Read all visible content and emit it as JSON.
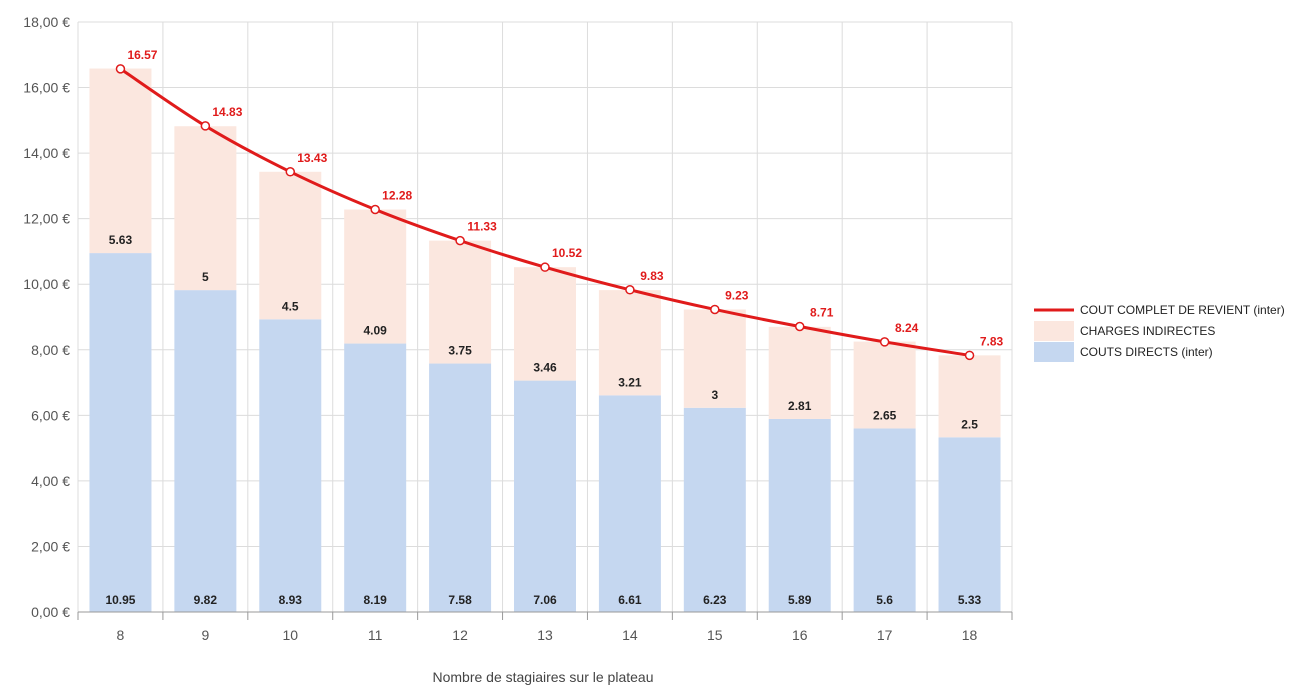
{
  "chart_data": {
    "type": "bar",
    "stacked": true,
    "categories": [
      "8",
      "9",
      "10",
      "11",
      "12",
      "13",
      "14",
      "15",
      "16",
      "17",
      "18"
    ],
    "xlabel": "Nombre de stagiaires sur le plateau",
    "ylabel": "",
    "ylim": [
      0,
      18
    ],
    "y_ticks": [
      "0,00 €",
      "2,00 €",
      "4,00 €",
      "6,00 €",
      "8,00 €",
      "10,00 €",
      "12,00 €",
      "14,00 €",
      "16,00 €",
      "18,00 €"
    ],
    "grid": true,
    "legend_position": "right",
    "series": [
      {
        "name": "COUTS DIRECTS (inter)",
        "type": "bar",
        "color": "#c5d7f0",
        "values": [
          10.95,
          9.82,
          8.93,
          8.19,
          7.58,
          7.06,
          6.61,
          6.23,
          5.89,
          5.6,
          5.33
        ],
        "labels": [
          "10.95",
          "9.82",
          "8.93",
          "8.19",
          "7.58",
          "7.06",
          "6.61",
          "6.23",
          "5.89",
          "5.6",
          "5.33"
        ]
      },
      {
        "name": "CHARGES INDIRECTES",
        "type": "bar",
        "color": "#fbe7df",
        "values": [
          5.63,
          5,
          4.5,
          4.09,
          3.75,
          3.46,
          3.21,
          3,
          2.81,
          2.65,
          2.5
        ],
        "labels": [
          "5.63",
          "5",
          "4.5",
          "4.09",
          "3.75",
          "3.46",
          "3.21",
          "3",
          "2.81",
          "2.65",
          "2.5"
        ]
      },
      {
        "name": "COUT COMPLET DE REVIENT (inter)",
        "type": "line",
        "color": "#e01b1b",
        "values": [
          16.57,
          14.83,
          13.43,
          12.28,
          11.33,
          10.52,
          9.83,
          9.23,
          8.71,
          8.24,
          7.83
        ],
        "labels": [
          "16.57",
          "14.83",
          "13.43",
          "12.28",
          "11.33",
          "10.52",
          "9.83",
          "9.23",
          "8.71",
          "8.24",
          "7.83"
        ]
      }
    ],
    "legend": [
      {
        "label": "COUT COMPLET DE REVIENT (inter)",
        "symbol": "line",
        "color": "#e01b1b"
      },
      {
        "label": "CHARGES INDIRECTES",
        "symbol": "box",
        "color": "#fbe7df"
      },
      {
        "label": "COUTS DIRECTS (inter)",
        "symbol": "box",
        "color": "#c5d7f0"
      }
    ]
  }
}
